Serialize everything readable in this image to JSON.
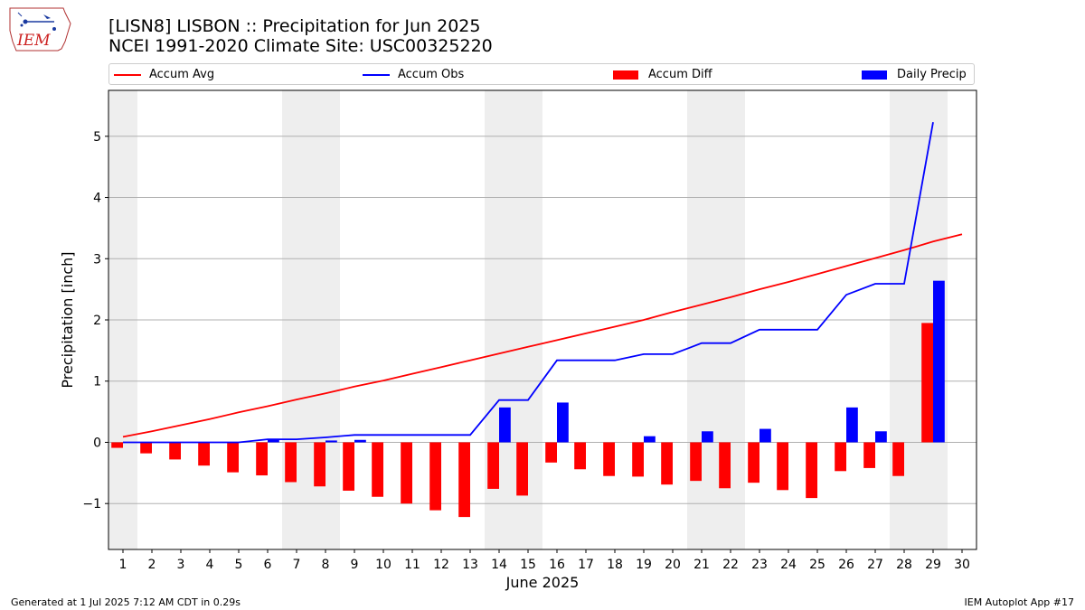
{
  "header": {
    "title_line1": "[LISN8] LISBON :: Precipitation for Jun 2025",
    "title_line2": "NCEI 1991-2020 Climate Site: USC00325220"
  },
  "logo": {
    "text": "IEM",
    "icon": "iem-iowa-logo-icon"
  },
  "footer": {
    "left": "Generated at 1 Jul 2025 7:12 AM CDT in 0.29s",
    "right": "IEM Autoplot App #17"
  },
  "colors": {
    "avg": "#ff0000",
    "obs": "#0000ff",
    "diff": "#ff0000",
    "daily": "#0000ff",
    "shade": "#eeeeee",
    "grid": "#b0b0b0"
  },
  "chart_data": {
    "type": "bar",
    "xlabel": "June 2025",
    "ylabel": "Precipitation [inch]",
    "xlim": [
      0.5,
      30.5
    ],
    "ylim": [
      -1.75,
      5.75
    ],
    "yticks": [
      -1,
      0,
      1,
      2,
      3,
      4,
      5
    ],
    "grid": "horizontal",
    "legend_position": "top",
    "weekend_shading": [
      [
        0.5,
        1.5
      ],
      [
        6.5,
        8.5
      ],
      [
        13.5,
        15.5
      ],
      [
        20.5,
        22.5
      ],
      [
        27.5,
        29.5
      ]
    ],
    "days": [
      1,
      2,
      3,
      4,
      5,
      6,
      7,
      8,
      9,
      10,
      11,
      12,
      13,
      14,
      15,
      16,
      17,
      18,
      19,
      20,
      21,
      22,
      23,
      24,
      25,
      26,
      27,
      28,
      29,
      30
    ],
    "series": [
      {
        "name": "Accum Avg",
        "kind": "line",
        "values": [
          0.09,
          0.18,
          0.28,
          0.38,
          0.49,
          0.59,
          0.7,
          0.8,
          0.91,
          1.01,
          1.12,
          1.23,
          1.34,
          1.45,
          1.56,
          1.67,
          1.78,
          1.89,
          2.0,
          2.13,
          2.25,
          2.37,
          2.5,
          2.62,
          2.75,
          2.88,
          3.01,
          3.14,
          3.28,
          3.4
        ]
      },
      {
        "name": "Accum Obs",
        "kind": "line",
        "values": [
          0.0,
          0.0,
          0.0,
          0.0,
          0.0,
          0.05,
          0.05,
          0.08,
          0.12,
          0.12,
          0.12,
          0.12,
          0.12,
          0.69,
          0.69,
          1.34,
          1.34,
          1.34,
          1.44,
          1.44,
          1.62,
          1.62,
          1.84,
          1.84,
          1.84,
          2.41,
          2.59,
          2.59,
          5.23,
          null
        ]
      },
      {
        "name": "Accum Diff",
        "kind": "bar",
        "values": [
          -0.09,
          -0.18,
          -0.28,
          -0.38,
          -0.49,
          -0.54,
          -0.65,
          -0.72,
          -0.79,
          -0.89,
          -1.0,
          -1.11,
          -1.22,
          -0.76,
          -0.87,
          -0.33,
          -0.44,
          -0.55,
          -0.56,
          -0.69,
          -0.63,
          -0.75,
          -0.66,
          -0.78,
          -0.91,
          -0.47,
          -0.42,
          -0.55,
          1.95,
          null
        ]
      },
      {
        "name": "Daily Precip",
        "kind": "bar",
        "values": [
          0,
          0,
          0,
          0,
          0,
          0.05,
          0,
          0.03,
          0.04,
          0,
          0,
          0,
          0,
          0.57,
          0,
          0.65,
          0,
          0,
          0.1,
          0,
          0.18,
          0,
          0.22,
          0,
          0,
          0.57,
          0.18,
          0,
          2.64,
          null
        ]
      }
    ]
  }
}
